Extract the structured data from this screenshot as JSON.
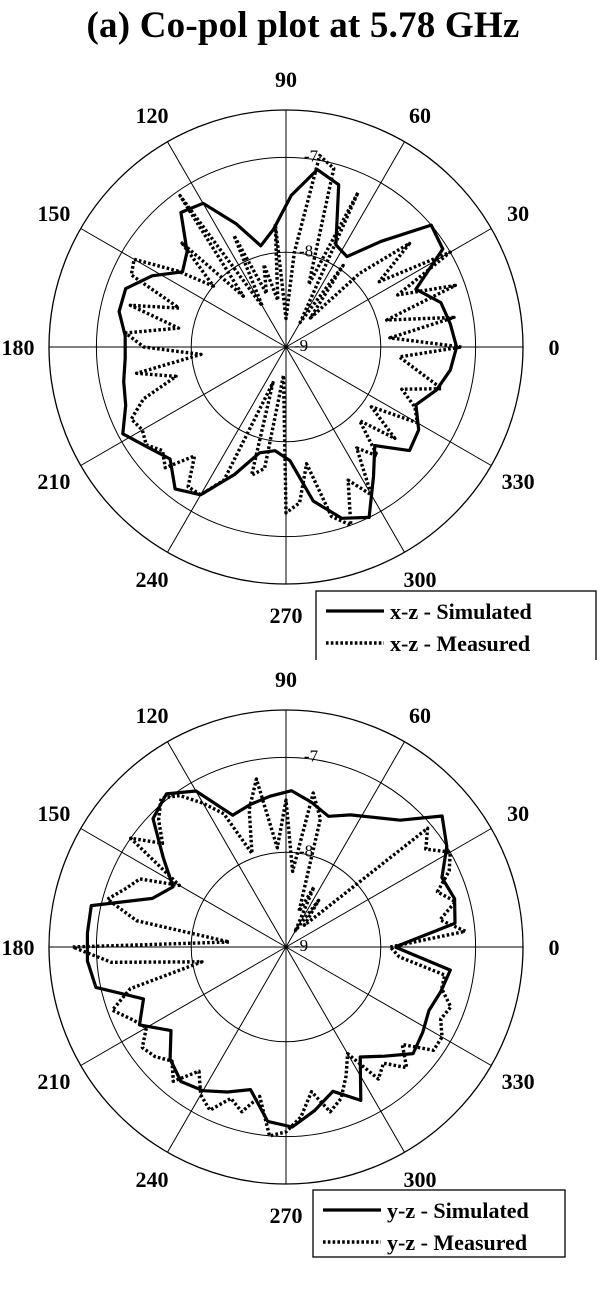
{
  "page_title": "(a) Co-pol plot at 5.78 GHz",
  "chart_data": [
    {
      "type": "polar-line",
      "angle_ticks": [
        "0",
        "30",
        "60",
        "90",
        "120",
        "150",
        "180",
        "210",
        "240",
        "270",
        "300",
        "330"
      ],
      "angle_tick_values": [
        0,
        30,
        60,
        90,
        120,
        150,
        180,
        210,
        240,
        270,
        300,
        330
      ],
      "radial_ticks": [
        "-9",
        "-8",
        "-7"
      ],
      "radial_tick_values": [
        -9,
        -8,
        -7
      ],
      "rlim": [
        -9,
        -6.5
      ],
      "grid": true,
      "legend_position": "below-right",
      "series": [
        {
          "name": "x-z - Simulated",
          "style": "solid",
          "theta": [
            0,
            8,
            16,
            24,
            32,
            40,
            48,
            56,
            64,
            72,
            80,
            88,
            96,
            104,
            112,
            120,
            128,
            136,
            144,
            152,
            160,
            168,
            176,
            184,
            192,
            200,
            208,
            216,
            224,
            232,
            240,
            248,
            256,
            264,
            272,
            280,
            288,
            296,
            304,
            312,
            320,
            328,
            336,
            344,
            352
          ],
          "r": [
            -7.2,
            -7.25,
            -7.3,
            -7.5,
            -7.05,
            -7.0,
            -7.5,
            -7.85,
            -7.8,
            -7.2,
            -7.1,
            -7.4,
            -7.75,
            -7.9,
            -7.6,
            -7.25,
            -7.2,
            -7.55,
            -7.65,
            -7.4,
            -7.2,
            -7.2,
            -7.3,
            -7.3,
            -7.25,
            -7.2,
            -7.05,
            -7.2,
            -7.3,
            -7.1,
            -7.2,
            -7.55,
            -7.85,
            -7.9,
            -7.8,
            -7.35,
            -7.1,
            -7.0,
            -7.35,
            -7.6,
            -7.3,
            -7.35,
            -7.5,
            -7.35,
            -7.25
          ]
        },
        {
          "name": "x-z - Measured",
          "style": "dotted",
          "theta": [
            0,
            5,
            10,
            15,
            20,
            25,
            30,
            35,
            40,
            45,
            50,
            55,
            60,
            65,
            70,
            75,
            80,
            85,
            90,
            95,
            100,
            105,
            110,
            115,
            120,
            125,
            130,
            135,
            140,
            145,
            150,
            155,
            160,
            165,
            170,
            175,
            180,
            185,
            190,
            195,
            200,
            205,
            210,
            215,
            220,
            225,
            230,
            235,
            240,
            245,
            250,
            255,
            260,
            265,
            270,
            275,
            280,
            285,
            290,
            295,
            300,
            305,
            310,
            315,
            320,
            325,
            330,
            335,
            340,
            345,
            350,
            355
          ],
          "r": [
            -7.15,
            -7.9,
            -7.2,
            -7.9,
            -7.1,
            -7.7,
            -7.0,
            -7.8,
            -7.3,
            -7.9,
            -8.6,
            -7.95,
            -8.7,
            -7.2,
            -8.3,
            -7.05,
            -6.95,
            -8.0,
            -8.7,
            -7.7,
            -8.5,
            -8.1,
            -8.4,
            -7.7,
            -8.5,
            -7.05,
            -8.3,
            -7.45,
            -8.0,
            -7.6,
            -7.15,
            -7.2,
            -7.8,
            -7.3,
            -7.85,
            -7.3,
            -7.5,
            -8.1,
            -7.4,
            -7.8,
            -7.4,
            -7.2,
            -7.25,
            -7.2,
            -7.3,
            -7.2,
            -7.5,
            -7.2,
            -7.2,
            -7.45,
            -8.6,
            -7.6,
            -7.7,
            -8.7,
            -7.25,
            -7.35,
            -7.75,
            -7.15,
            -7.0,
            -7.45,
            -7.2,
            -7.7,
            -7.5,
            -7.9,
            -7.5,
            -7.9,
            -7.4,
            -7.5,
            -7.7,
            -7.3,
            -7.6,
            -7.8
          ]
        }
      ]
    },
    {
      "type": "polar-line",
      "angle_ticks": [
        "0",
        "30",
        "60",
        "90",
        "120",
        "150",
        "180",
        "210",
        "240",
        "270",
        "300",
        "330"
      ],
      "angle_tick_values": [
        0,
        30,
        60,
        90,
        120,
        150,
        180,
        210,
        240,
        270,
        300,
        330
      ],
      "radial_ticks": [
        "-9",
        "-8",
        "-7"
      ],
      "radial_tick_values": [
        -9,
        -8,
        -7
      ],
      "rlim": [
        -9,
        -6.5
      ],
      "grid": true,
      "legend_position": "below-right",
      "series": [
        {
          "name": "y-z - Simulated",
          "style": "solid",
          "theta": [
            0,
            8,
            16,
            24,
            32,
            40,
            48,
            56,
            64,
            72,
            80,
            88,
            96,
            104,
            112,
            120,
            128,
            136,
            144,
            152,
            160,
            168,
            176,
            184,
            192,
            200,
            208,
            216,
            224,
            232,
            240,
            248,
            256,
            264,
            272,
            280,
            288,
            296,
            304,
            312,
            320,
            328,
            336,
            344,
            352
          ],
          "r": [
            -7.85,
            -7.2,
            -7.15,
            -7.2,
            -7.0,
            -6.85,
            -7.2,
            -7.35,
            -7.45,
            -7.55,
            -7.45,
            -7.35,
            -7.4,
            -7.45,
            -7.5,
            -7.1,
            -6.95,
            -7.05,
            -7.4,
            -7.65,
            -7.5,
            -6.9,
            -6.9,
            -6.9,
            -6.95,
            -7.4,
            -7.25,
            -7.5,
            -7.3,
            -7.2,
            -7.25,
            -7.35,
            -7.45,
            -7.15,
            -7.1,
            -7.25,
            -7.4,
            -7.2,
            -7.6,
            -7.45,
            -7.25,
            -7.3,
            -7.35,
            -7.3,
            -7.25
          ]
        },
        {
          "name": "y-z - Measured",
          "style": "dotted",
          "theta": [
            0,
            5,
            10,
            15,
            20,
            25,
            30,
            35,
            40,
            45,
            50,
            55,
            60,
            65,
            70,
            75,
            80,
            85,
            90,
            95,
            100,
            105,
            110,
            115,
            120,
            125,
            130,
            135,
            140,
            145,
            150,
            155,
            160,
            165,
            170,
            175,
            180,
            185,
            190,
            195,
            200,
            205,
            210,
            215,
            220,
            225,
            230,
            235,
            240,
            245,
            250,
            255,
            260,
            265,
            270,
            275,
            280,
            285,
            290,
            295,
            300,
            305,
            310,
            315,
            320,
            325,
            330,
            335,
            340,
            345,
            350,
            355
          ],
          "r": [
            -7.9,
            -7.1,
            -7.35,
            -7.15,
            -7.3,
            -7.1,
            -7.0,
            -7.2,
            -7.05,
            -8.5,
            -8.7,
            -8.4,
            -8.8,
            -8.3,
            -8.6,
            -7.6,
            -7.35,
            -8.2,
            -7.45,
            -7.95,
            -7.2,
            -7.5,
            -7.95,
            -7.45,
            -7.25,
            -7.05,
            -6.95,
            -7.1,
            -7.3,
            -7.0,
            -7.7,
            -7.3,
            -7.2,
            -7.05,
            -7.4,
            -8.4,
            -6.75,
            -7.15,
            -8.1,
            -7.3,
            -7.05,
            -7.2,
            -7.3,
            -7.15,
            -7.2,
            -7.3,
            -7.15,
            -7.4,
            -7.2,
            -7.1,
            -7.3,
            -7.2,
            -7.4,
            -7.0,
            -7.05,
            -7.2,
            -7.45,
            -7.2,
            -7.3,
            -7.5,
            -7.7,
            -7.3,
            -7.4,
            -7.2,
            -7.4,
            -7.1,
            -7.1,
            -7.2,
            -7.15,
            -7.3,
            -7.3,
            -7.8
          ]
        }
      ]
    }
  ]
}
